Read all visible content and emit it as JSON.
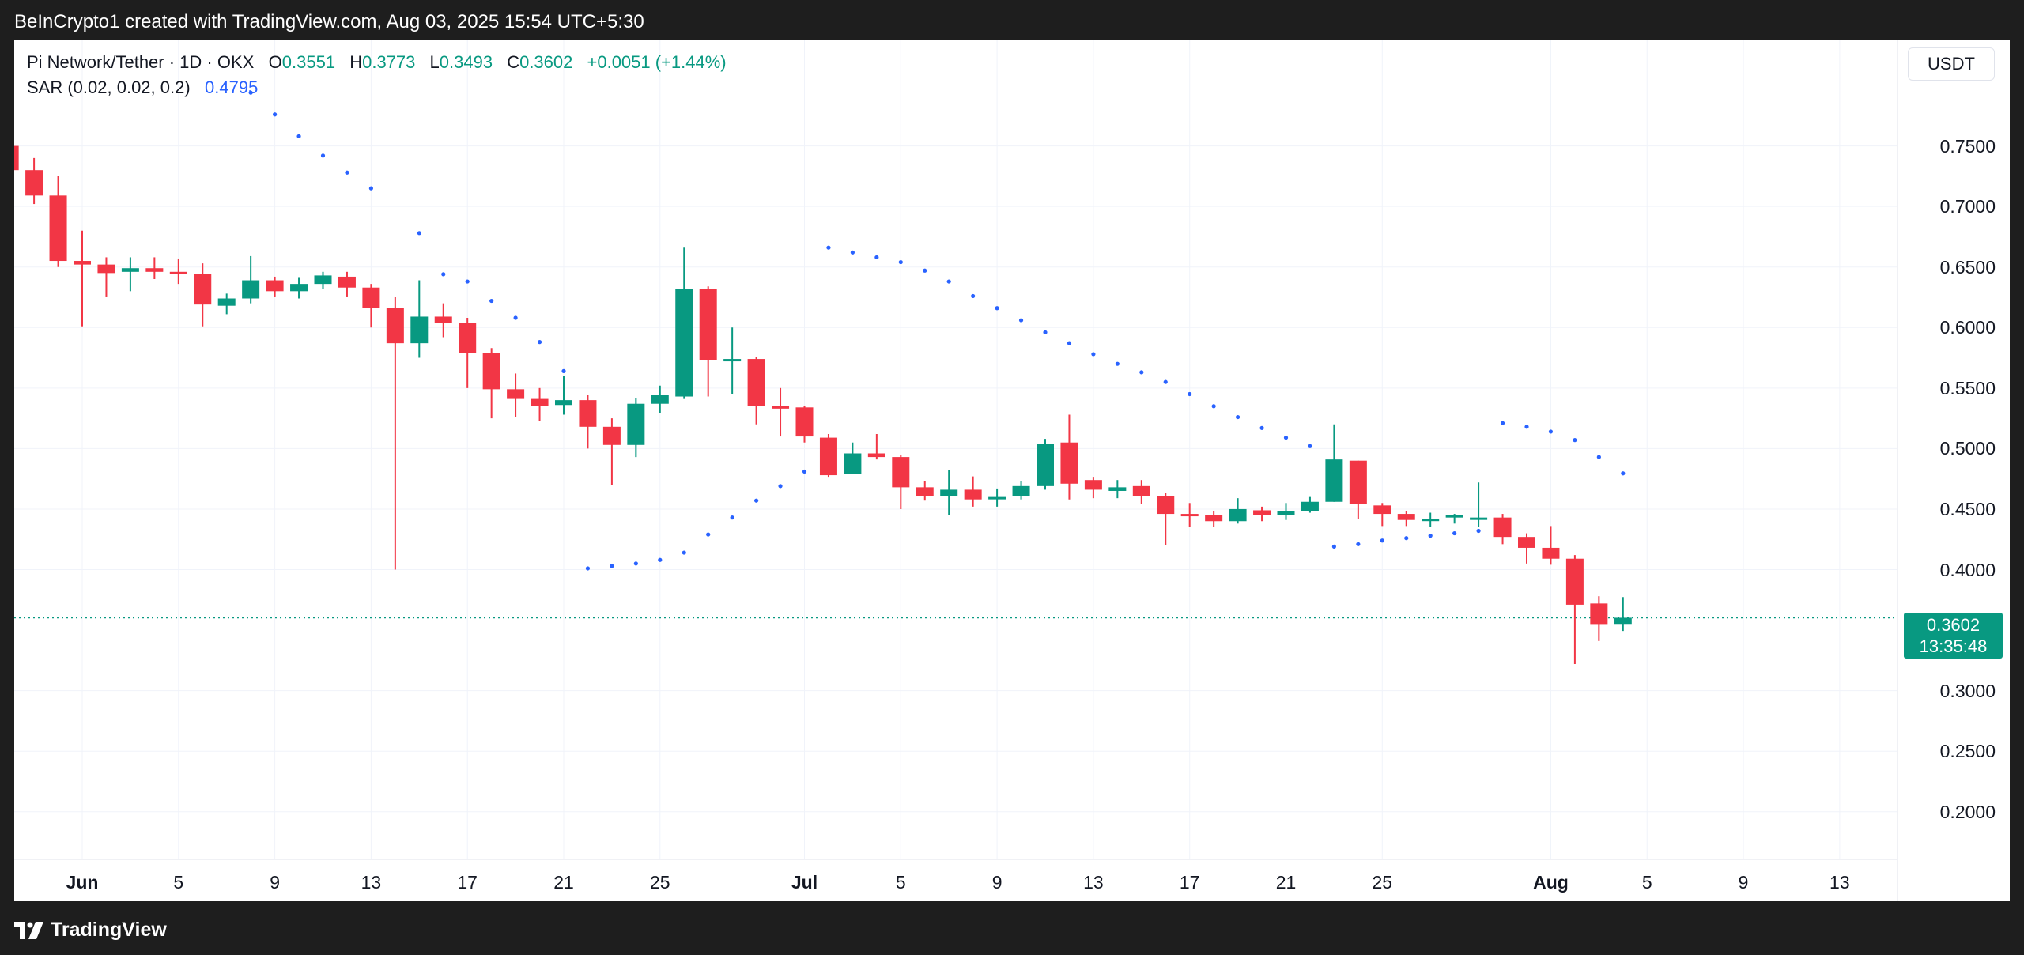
{
  "header": {
    "credit": "BeInCrypto1 created with TradingView.com, Aug 03, 2025 15:54 UTC+5:30"
  },
  "legend": {
    "symbol": "Pi Network/Tether · 1D · OKX",
    "o_label": "O",
    "o_value": "0.3551",
    "h_label": "H",
    "h_value": "0.3773",
    "l_label": "L",
    "l_value": "0.3493",
    "c_label": "C",
    "c_value": "0.3602",
    "change": "+0.0051 (+1.44%)",
    "indicator": "SAR (0.02, 0.02, 0.2)",
    "indicator_value": "0.4795"
  },
  "currency": "USDT",
  "last_price": {
    "value": "0.3602",
    "countdown": "13:35:48"
  },
  "footer": {
    "brand": "TradingView"
  },
  "colors": {
    "up": "#089981",
    "down": "#f23645",
    "sar": "#2962ff",
    "grid": "#f0f3fa"
  },
  "chart_data": {
    "type": "candlestick",
    "title": "",
    "ylim": [
      0.16,
      0.8
    ],
    "y_ticks": [
      "0.7500",
      "0.7000",
      "0.6500",
      "0.6000",
      "0.5500",
      "0.5000",
      "0.4500",
      "0.4000",
      "0.3000",
      "0.2500",
      "0.2000"
    ],
    "x_ticks": [
      {
        "label": "Jun",
        "date": "2025-06-01",
        "bold": true
      },
      {
        "label": "5",
        "date": "2025-06-05"
      },
      {
        "label": "9",
        "date": "2025-06-09"
      },
      {
        "label": "13",
        "date": "2025-06-13"
      },
      {
        "label": "17",
        "date": "2025-06-17"
      },
      {
        "label": "21",
        "date": "2025-06-21"
      },
      {
        "label": "25",
        "date": "2025-06-25"
      },
      {
        "label": "Jul",
        "date": "2025-07-01",
        "bold": true
      },
      {
        "label": "5",
        "date": "2025-07-05"
      },
      {
        "label": "9",
        "date": "2025-07-09"
      },
      {
        "label": "13",
        "date": "2025-07-13"
      },
      {
        "label": "17",
        "date": "2025-07-17"
      },
      {
        "label": "21",
        "date": "2025-07-21"
      },
      {
        "label": "25",
        "date": "2025-07-25"
      },
      {
        "label": "Aug",
        "date": "2025-08-01",
        "bold": true
      },
      {
        "label": "5",
        "date": "2025-08-05"
      },
      {
        "label": "9",
        "date": "2025-08-09"
      },
      {
        "label": "13",
        "date": "2025-08-13"
      }
    ],
    "grid": true,
    "last_price_line": 0.3602,
    "candles": [
      {
        "date": "2025-05-28",
        "o": 0.773,
        "h": 0.782,
        "l": 0.745,
        "c": 0.75
      },
      {
        "date": "2025-05-29",
        "o": 0.75,
        "h": 0.757,
        "l": 0.71,
        "c": 0.73
      },
      {
        "date": "2025-05-30",
        "o": 0.73,
        "h": 0.74,
        "l": 0.702,
        "c": 0.709
      },
      {
        "date": "2025-05-31",
        "o": 0.709,
        "h": 0.725,
        "l": 0.65,
        "c": 0.655
      },
      {
        "date": "2025-06-01",
        "o": 0.655,
        "h": 0.68,
        "l": 0.601,
        "c": 0.652
      },
      {
        "date": "2025-06-02",
        "o": 0.652,
        "h": 0.658,
        "l": 0.625,
        "c": 0.645
      },
      {
        "date": "2025-06-03",
        "o": 0.646,
        "h": 0.658,
        "l": 0.63,
        "c": 0.649
      },
      {
        "date": "2025-06-04",
        "o": 0.649,
        "h": 0.658,
        "l": 0.64,
        "c": 0.646
      },
      {
        "date": "2025-06-05",
        "o": 0.646,
        "h": 0.657,
        "l": 0.636,
        "c": 0.644
      },
      {
        "date": "2025-06-06",
        "o": 0.644,
        "h": 0.653,
        "l": 0.601,
        "c": 0.619
      },
      {
        "date": "2025-06-07",
        "o": 0.618,
        "h": 0.628,
        "l": 0.611,
        "c": 0.624
      },
      {
        "date": "2025-06-08",
        "o": 0.624,
        "h": 0.659,
        "l": 0.62,
        "c": 0.639
      },
      {
        "date": "2025-06-09",
        "o": 0.639,
        "h": 0.642,
        "l": 0.625,
        "c": 0.63
      },
      {
        "date": "2025-06-10",
        "o": 0.63,
        "h": 0.641,
        "l": 0.624,
        "c": 0.636
      },
      {
        "date": "2025-06-11",
        "o": 0.636,
        "h": 0.646,
        "l": 0.632,
        "c": 0.643
      },
      {
        "date": "2025-06-12",
        "o": 0.642,
        "h": 0.646,
        "l": 0.625,
        "c": 0.633
      },
      {
        "date": "2025-06-13",
        "o": 0.633,
        "h": 0.636,
        "l": 0.6,
        "c": 0.616
      },
      {
        "date": "2025-06-14",
        "o": 0.616,
        "h": 0.625,
        "l": 0.4,
        "c": 0.587
      },
      {
        "date": "2025-06-15",
        "o": 0.587,
        "h": 0.639,
        "l": 0.575,
        "c": 0.609
      },
      {
        "date": "2025-06-16",
        "o": 0.609,
        "h": 0.62,
        "l": 0.592,
        "c": 0.604
      },
      {
        "date": "2025-06-17",
        "o": 0.604,
        "h": 0.608,
        "l": 0.55,
        "c": 0.579
      },
      {
        "date": "2025-06-18",
        "o": 0.579,
        "h": 0.583,
        "l": 0.525,
        "c": 0.549
      },
      {
        "date": "2025-06-19",
        "o": 0.549,
        "h": 0.562,
        "l": 0.526,
        "c": 0.541
      },
      {
        "date": "2025-06-20",
        "o": 0.541,
        "h": 0.55,
        "l": 0.523,
        "c": 0.535
      },
      {
        "date": "2025-06-21",
        "o": 0.536,
        "h": 0.56,
        "l": 0.528,
        "c": 0.54
      },
      {
        "date": "2025-06-22",
        "o": 0.54,
        "h": 0.544,
        "l": 0.5,
        "c": 0.518
      },
      {
        "date": "2025-06-23",
        "o": 0.518,
        "h": 0.525,
        "l": 0.47,
        "c": 0.503
      },
      {
        "date": "2025-06-24",
        "o": 0.503,
        "h": 0.542,
        "l": 0.493,
        "c": 0.537
      },
      {
        "date": "2025-06-25",
        "o": 0.537,
        "h": 0.552,
        "l": 0.529,
        "c": 0.544
      },
      {
        "date": "2025-06-26",
        "o": 0.543,
        "h": 0.666,
        "l": 0.541,
        "c": 0.632
      },
      {
        "date": "2025-06-27",
        "o": 0.632,
        "h": 0.634,
        "l": 0.543,
        "c": 0.573
      },
      {
        "date": "2025-06-28",
        "o": 0.573,
        "h": 0.6,
        "l": 0.545,
        "c": 0.574
      },
      {
        "date": "2025-06-29",
        "o": 0.574,
        "h": 0.576,
        "l": 0.52,
        "c": 0.535
      },
      {
        "date": "2025-06-30",
        "o": 0.535,
        "h": 0.55,
        "l": 0.51,
        "c": 0.533
      },
      {
        "date": "2025-07-01",
        "o": 0.534,
        "h": 0.535,
        "l": 0.505,
        "c": 0.51
      },
      {
        "date": "2025-07-02",
        "o": 0.509,
        "h": 0.512,
        "l": 0.476,
        "c": 0.478
      },
      {
        "date": "2025-07-03",
        "o": 0.479,
        "h": 0.505,
        "l": 0.479,
        "c": 0.496
      },
      {
        "date": "2025-07-04",
        "o": 0.496,
        "h": 0.512,
        "l": 0.491,
        "c": 0.493
      },
      {
        "date": "2025-07-05",
        "o": 0.493,
        "h": 0.495,
        "l": 0.45,
        "c": 0.468
      },
      {
        "date": "2025-07-06",
        "o": 0.468,
        "h": 0.473,
        "l": 0.457,
        "c": 0.461
      },
      {
        "date": "2025-07-07",
        "o": 0.461,
        "h": 0.482,
        "l": 0.445,
        "c": 0.466
      },
      {
        "date": "2025-07-08",
        "o": 0.466,
        "h": 0.477,
        "l": 0.452,
        "c": 0.458
      },
      {
        "date": "2025-07-09",
        "o": 0.459,
        "h": 0.467,
        "l": 0.452,
        "c": 0.46
      },
      {
        "date": "2025-07-10",
        "o": 0.461,
        "h": 0.473,
        "l": 0.458,
        "c": 0.469
      },
      {
        "date": "2025-07-11",
        "o": 0.469,
        "h": 0.508,
        "l": 0.466,
        "c": 0.504
      },
      {
        "date": "2025-07-12",
        "o": 0.505,
        "h": 0.528,
        "l": 0.458,
        "c": 0.471
      },
      {
        "date": "2025-07-13",
        "o": 0.474,
        "h": 0.476,
        "l": 0.459,
        "c": 0.466
      },
      {
        "date": "2025-07-14",
        "o": 0.465,
        "h": 0.474,
        "l": 0.459,
        "c": 0.468
      },
      {
        "date": "2025-07-15",
        "o": 0.469,
        "h": 0.474,
        "l": 0.454,
        "c": 0.461
      },
      {
        "date": "2025-07-16",
        "o": 0.461,
        "h": 0.463,
        "l": 0.42,
        "c": 0.446
      },
      {
        "date": "2025-07-17",
        "o": 0.446,
        "h": 0.455,
        "l": 0.435,
        "c": 0.445
      },
      {
        "date": "2025-07-18",
        "o": 0.445,
        "h": 0.448,
        "l": 0.435,
        "c": 0.44
      },
      {
        "date": "2025-07-19",
        "o": 0.44,
        "h": 0.459,
        "l": 0.438,
        "c": 0.45
      },
      {
        "date": "2025-07-20",
        "o": 0.449,
        "h": 0.452,
        "l": 0.44,
        "c": 0.445
      },
      {
        "date": "2025-07-21",
        "o": 0.445,
        "h": 0.455,
        "l": 0.441,
        "c": 0.448
      },
      {
        "date": "2025-07-22",
        "o": 0.448,
        "h": 0.46,
        "l": 0.447,
        "c": 0.456
      },
      {
        "date": "2025-07-23",
        "o": 0.456,
        "h": 0.52,
        "l": 0.456,
        "c": 0.491
      },
      {
        "date": "2025-07-24",
        "o": 0.49,
        "h": 0.49,
        "l": 0.442,
        "c": 0.454
      },
      {
        "date": "2025-07-25",
        "o": 0.453,
        "h": 0.455,
        "l": 0.436,
        "c": 0.446
      },
      {
        "date": "2025-07-26",
        "o": 0.446,
        "h": 0.448,
        "l": 0.436,
        "c": 0.441
      },
      {
        "date": "2025-07-27",
        "o": 0.441,
        "h": 0.447,
        "l": 0.435,
        "c": 0.442
      },
      {
        "date": "2025-07-28",
        "o": 0.443,
        "h": 0.446,
        "l": 0.438,
        "c": 0.445
      },
      {
        "date": "2025-07-29",
        "o": 0.443,
        "h": 0.472,
        "l": 0.435,
        "c": 0.443
      },
      {
        "date": "2025-07-30",
        "o": 0.443,
        "h": 0.446,
        "l": 0.421,
        "c": 0.427
      },
      {
        "date": "2025-07-31",
        "o": 0.427,
        "h": 0.43,
        "l": 0.405,
        "c": 0.418
      },
      {
        "date": "2025-08-01",
        "o": 0.418,
        "h": 0.436,
        "l": 0.404,
        "c": 0.409
      },
      {
        "date": "2025-08-02",
        "o": 0.409,
        "h": 0.412,
        "l": 0.322,
        "c": 0.371
      },
      {
        "date": "2025-08-03",
        "o": 0.372,
        "h": 0.378,
        "l": 0.341,
        "c": 0.355
      },
      {
        "date": "2025-08-04",
        "o": 0.3551,
        "h": 0.3773,
        "l": 0.3493,
        "c": 0.3602
      }
    ],
    "sar": [
      {
        "date": "2025-06-08",
        "v": 0.794
      },
      {
        "date": "2025-06-09",
        "v": 0.776
      },
      {
        "date": "2025-06-10",
        "v": 0.758
      },
      {
        "date": "2025-06-11",
        "v": 0.742
      },
      {
        "date": "2025-06-12",
        "v": 0.728
      },
      {
        "date": "2025-06-13",
        "v": 0.715
      },
      {
        "date": "2025-06-15",
        "v": 0.678
      },
      {
        "date": "2025-06-16",
        "v": 0.644
      },
      {
        "date": "2025-06-17",
        "v": 0.638
      },
      {
        "date": "2025-06-18",
        "v": 0.622
      },
      {
        "date": "2025-06-19",
        "v": 0.608
      },
      {
        "date": "2025-06-20",
        "v": 0.588
      },
      {
        "date": "2025-06-21",
        "v": 0.564
      },
      {
        "date": "2025-06-22",
        "v": 0.401
      },
      {
        "date": "2025-06-23",
        "v": 0.403
      },
      {
        "date": "2025-06-24",
        "v": 0.405
      },
      {
        "date": "2025-06-25",
        "v": 0.408
      },
      {
        "date": "2025-06-26",
        "v": 0.414
      },
      {
        "date": "2025-06-27",
        "v": 0.429
      },
      {
        "date": "2025-06-28",
        "v": 0.443
      },
      {
        "date": "2025-06-29",
        "v": 0.457
      },
      {
        "date": "2025-06-30",
        "v": 0.469
      },
      {
        "date": "2025-07-01",
        "v": 0.481
      },
      {
        "date": "2025-07-02",
        "v": 0.666
      },
      {
        "date": "2025-07-03",
        "v": 0.662
      },
      {
        "date": "2025-07-04",
        "v": 0.658
      },
      {
        "date": "2025-07-05",
        "v": 0.654
      },
      {
        "date": "2025-07-06",
        "v": 0.647
      },
      {
        "date": "2025-07-07",
        "v": 0.638
      },
      {
        "date": "2025-07-08",
        "v": 0.626
      },
      {
        "date": "2025-07-09",
        "v": 0.616
      },
      {
        "date": "2025-07-10",
        "v": 0.606
      },
      {
        "date": "2025-07-11",
        "v": 0.596
      },
      {
        "date": "2025-07-12",
        "v": 0.587
      },
      {
        "date": "2025-07-13",
        "v": 0.578
      },
      {
        "date": "2025-07-14",
        "v": 0.57
      },
      {
        "date": "2025-07-15",
        "v": 0.563
      },
      {
        "date": "2025-07-16",
        "v": 0.555
      },
      {
        "date": "2025-07-17",
        "v": 0.545
      },
      {
        "date": "2025-07-18",
        "v": 0.535
      },
      {
        "date": "2025-07-19",
        "v": 0.526
      },
      {
        "date": "2025-07-20",
        "v": 0.517
      },
      {
        "date": "2025-07-21",
        "v": 0.509
      },
      {
        "date": "2025-07-22",
        "v": 0.502
      },
      {
        "date": "2025-07-23",
        "v": 0.419
      },
      {
        "date": "2025-07-24",
        "v": 0.421
      },
      {
        "date": "2025-07-25",
        "v": 0.424
      },
      {
        "date": "2025-07-26",
        "v": 0.426
      },
      {
        "date": "2025-07-27",
        "v": 0.428
      },
      {
        "date": "2025-07-28",
        "v": 0.43
      },
      {
        "date": "2025-07-29",
        "v": 0.432
      },
      {
        "date": "2025-07-30",
        "v": 0.521
      },
      {
        "date": "2025-07-31",
        "v": 0.518
      },
      {
        "date": "2025-08-01",
        "v": 0.514
      },
      {
        "date": "2025-08-02",
        "v": 0.507
      },
      {
        "date": "2025-08-03",
        "v": 0.493
      },
      {
        "date": "2025-08-04",
        "v": 0.4795
      }
    ]
  }
}
